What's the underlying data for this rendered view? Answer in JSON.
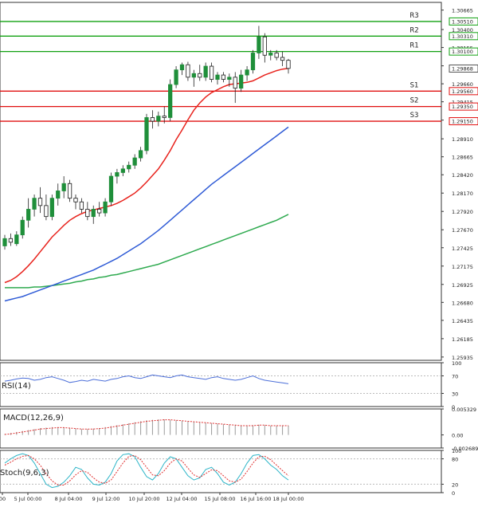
{
  "chart_data": [
    {
      "type": "candlestick",
      "panel": "price",
      "title": "",
      "y_ticks": [
        "1.30665",
        "1.30400",
        "1.30155",
        "1.29905",
        "1.29660",
        "1.29415",
        "1.29165",
        "1.28910",
        "1.28665",
        "1.28420",
        "1.28170",
        "1.27920",
        "1.27670",
        "1.27425",
        "1.27175",
        "1.26925",
        "1.26680",
        "1.26435",
        "1.26185",
        "1.25935"
      ],
      "ylim": [
        1.2589,
        1.3077
      ],
      "x_ticks": [
        "00",
        "5 Jul 00:00",
        "8 Jul 04:00",
        "9 Jul 12:00",
        "10 Jul 20:00",
        "12 Jul 04:00",
        "15 Jul 08:00",
        "16 Jul 16:00",
        "18 Jul 00:00"
      ],
      "levels": [
        {
          "name": "R3",
          "value": "1.30510",
          "color": "#11a011"
        },
        {
          "name": "R2",
          "value": "1.30310",
          "color": "#11a011"
        },
        {
          "name": "R1",
          "value": "1.30100",
          "color": "#11a011"
        },
        {
          "name": "S1",
          "value": "1.29560",
          "color": "#e01010"
        },
        {
          "name": "S2",
          "value": "1.29350",
          "color": "#e01010"
        },
        {
          "name": "S3",
          "value": "1.29150",
          "color": "#e01010"
        }
      ],
      "current_price": "1.29868",
      "candles": [
        {
          "o": 1.2745,
          "h": 1.276,
          "l": 1.274,
          "c": 1.2755
        },
        {
          "o": 1.2755,
          "h": 1.2762,
          "l": 1.2745,
          "c": 1.275
        },
        {
          "o": 1.2748,
          "h": 1.2765,
          "l": 1.2745,
          "c": 1.276
        },
        {
          "o": 1.276,
          "h": 1.2785,
          "l": 1.2755,
          "c": 1.278
        },
        {
          "o": 1.278,
          "h": 1.281,
          "l": 1.277,
          "c": 1.2795
        },
        {
          "o": 1.2795,
          "h": 1.2815,
          "l": 1.2785,
          "c": 1.281
        },
        {
          "o": 1.281,
          "h": 1.2825,
          "l": 1.279,
          "c": 1.28
        },
        {
          "o": 1.28,
          "h": 1.2815,
          "l": 1.278,
          "c": 1.2785
        },
        {
          "o": 1.2785,
          "h": 1.2815,
          "l": 1.278,
          "c": 1.281
        },
        {
          "o": 1.281,
          "h": 1.283,
          "l": 1.28,
          "c": 1.282
        },
        {
          "o": 1.282,
          "h": 1.284,
          "l": 1.281,
          "c": 1.283
        },
        {
          "o": 1.283,
          "h": 1.2835,
          "l": 1.2805,
          "c": 1.281
        },
        {
          "o": 1.281,
          "h": 1.2815,
          "l": 1.2795,
          "c": 1.2805
        },
        {
          "o": 1.2805,
          "h": 1.281,
          "l": 1.279,
          "c": 1.2795
        },
        {
          "o": 1.2795,
          "h": 1.2805,
          "l": 1.278,
          "c": 1.2785
        },
        {
          "o": 1.2785,
          "h": 1.28,
          "l": 1.2775,
          "c": 1.2795
        },
        {
          "o": 1.2795,
          "h": 1.2805,
          "l": 1.2785,
          "c": 1.279
        },
        {
          "o": 1.279,
          "h": 1.281,
          "l": 1.2785,
          "c": 1.2805
        },
        {
          "o": 1.2805,
          "h": 1.2845,
          "l": 1.28,
          "c": 1.284
        },
        {
          "o": 1.284,
          "h": 1.285,
          "l": 1.283,
          "c": 1.2845
        },
        {
          "o": 1.2845,
          "h": 1.2855,
          "l": 1.284,
          "c": 1.285
        },
        {
          "o": 1.285,
          "h": 1.286,
          "l": 1.2845,
          "c": 1.2855
        },
        {
          "o": 1.2855,
          "h": 1.287,
          "l": 1.285,
          "c": 1.2865
        },
        {
          "o": 1.2865,
          "h": 1.288,
          "l": 1.286,
          "c": 1.2875
        },
        {
          "o": 1.2875,
          "h": 1.2925,
          "l": 1.287,
          "c": 1.292
        },
        {
          "o": 1.292,
          "h": 1.293,
          "l": 1.2905,
          "c": 1.2915
        },
        {
          "o": 1.2915,
          "h": 1.2928,
          "l": 1.2908,
          "c": 1.2922
        },
        {
          "o": 1.2922,
          "h": 1.2935,
          "l": 1.2912,
          "c": 1.292
        },
        {
          "o": 1.292,
          "h": 1.2972,
          "l": 1.2915,
          "c": 1.2965
        },
        {
          "o": 1.2965,
          "h": 1.299,
          "l": 1.296,
          "c": 1.2985
        },
        {
          "o": 1.2985,
          "h": 1.2995,
          "l": 1.2978,
          "c": 1.2992
        },
        {
          "o": 1.2992,
          "h": 1.2996,
          "l": 1.297,
          "c": 1.2975
        },
        {
          "o": 1.2975,
          "h": 1.2985,
          "l": 1.2962,
          "c": 1.298
        },
        {
          "o": 1.298,
          "h": 1.2992,
          "l": 1.297,
          "c": 1.2975
        },
        {
          "o": 1.2975,
          "h": 1.2995,
          "l": 1.297,
          "c": 1.299
        },
        {
          "o": 1.299,
          "h": 1.2995,
          "l": 1.2968,
          "c": 1.2972
        },
        {
          "o": 1.2972,
          "h": 1.2982,
          "l": 1.2965,
          "c": 1.2978
        },
        {
          "o": 1.2978,
          "h": 1.2982,
          "l": 1.2968,
          "c": 1.2972
        },
        {
          "o": 1.2972,
          "h": 1.298,
          "l": 1.2962,
          "c": 1.2975
        },
        {
          "o": 1.2975,
          "h": 1.2982,
          "l": 1.294,
          "c": 1.296
        },
        {
          "o": 1.296,
          "h": 1.2985,
          "l": 1.2955,
          "c": 1.2978
        },
        {
          "o": 1.2978,
          "h": 1.299,
          "l": 1.297,
          "c": 1.2985
        },
        {
          "o": 1.2985,
          "h": 1.3012,
          "l": 1.298,
          "c": 1.3008
        },
        {
          "o": 1.3008,
          "h": 1.3045,
          "l": 1.3,
          "c": 1.303
        },
        {
          "o": 1.303,
          "h": 1.3035,
          "l": 1.2995,
          "c": 1.3005
        },
        {
          "o": 1.3005,
          "h": 1.3012,
          "l": 1.2998,
          "c": 1.3008
        },
        {
          "o": 1.3008,
          "h": 1.3012,
          "l": 1.2998,
          "c": 1.3002
        },
        {
          "o": 1.3002,
          "h": 1.301,
          "l": 1.299,
          "c": 1.2998
        },
        {
          "o": 1.2998,
          "h": 1.3,
          "l": 1.298,
          "c": 1.2987
        }
      ],
      "ma_fast": [
        1.2695,
        1.2698,
        1.2703,
        1.271,
        1.2718,
        1.2727,
        1.2737,
        1.2747,
        1.2757,
        1.2765,
        1.2773,
        1.278,
        1.2785,
        1.2789,
        1.2792,
        1.2794,
        1.2796,
        1.2798,
        1.28,
        1.2803,
        1.2807,
        1.2812,
        1.2817,
        1.2824,
        1.2832,
        1.2841,
        1.285,
        1.2862,
        1.2875,
        1.289,
        1.2903,
        1.2917,
        1.293,
        1.294,
        1.2948,
        1.2954,
        1.2958,
        1.2962,
        1.2965,
        1.2966,
        1.2967,
        1.2968,
        1.297,
        1.2974,
        1.2978,
        1.2981,
        1.2984,
        1.2986,
        1.2987
      ],
      "ma_mid": [
        1.267,
        1.2672,
        1.2674,
        1.2676,
        1.2679,
        1.2682,
        1.2685,
        1.2688,
        1.2691,
        1.2694,
        1.2697,
        1.27,
        1.2703,
        1.2706,
        1.2709,
        1.2712,
        1.2716,
        1.272,
        1.2724,
        1.2728,
        1.2733,
        1.2738,
        1.2743,
        1.2748,
        1.2754,
        1.276,
        1.2766,
        1.2773,
        1.278,
        1.2787,
        1.2794,
        1.2801,
        1.2808,
        1.2815,
        1.2822,
        1.2829,
        1.2835,
        1.2841,
        1.2847,
        1.2853,
        1.2859,
        1.2865,
        1.2871,
        1.2877,
        1.2883,
        1.2889,
        1.2895,
        1.2901,
        1.2907
      ],
      "ma_slow": [
        1.2688,
        1.2688,
        1.2688,
        1.2688,
        1.2688,
        1.2689,
        1.2689,
        1.269,
        1.2691,
        1.2692,
        1.2693,
        1.2694,
        1.2696,
        1.2697,
        1.2699,
        1.27,
        1.2702,
        1.2703,
        1.2705,
        1.2706,
        1.2708,
        1.271,
        1.2712,
        1.2714,
        1.2716,
        1.2718,
        1.272,
        1.2723,
        1.2726,
        1.2729,
        1.2732,
        1.2735,
        1.2738,
        1.2741,
        1.2744,
        1.2747,
        1.275,
        1.2753,
        1.2756,
        1.2759,
        1.2762,
        1.2765,
        1.2768,
        1.2771,
        1.2774,
        1.2777,
        1.278,
        1.2784,
        1.2788
      ]
    },
    {
      "type": "line",
      "panel": "rsi",
      "label": "RSI(14)",
      "y_ticks": [
        "100",
        "70",
        "30",
        "0"
      ],
      "ylim": [
        0,
        100
      ],
      "values": [
        58,
        60,
        63,
        65,
        64,
        60,
        62,
        66,
        68,
        64,
        60,
        55,
        57,
        60,
        58,
        62,
        60,
        58,
        62,
        64,
        68,
        70,
        66,
        64,
        68,
        72,
        70,
        68,
        66,
        70,
        72,
        68,
        66,
        64,
        62,
        66,
        68,
        64,
        62,
        60,
        62,
        66,
        70,
        64,
        60,
        58,
        56,
        54,
        52
      ]
    },
    {
      "type": "bar",
      "panel": "macd",
      "label": "MACD(12,26,9)",
      "y_ticks": [
        "0.005329",
        "0.00",
        "-0.002689"
      ],
      "ylim": [
        -0.002689,
        0.005329
      ],
      "histogram": [
        0.0002,
        0.0004,
        0.0006,
        0.0008,
        0.001,
        0.0012,
        0.0014,
        0.0015,
        0.0016,
        0.0016,
        0.0015,
        0.0014,
        0.0013,
        0.0012,
        0.0012,
        0.0013,
        0.0014,
        0.0016,
        0.0018,
        0.002,
        0.0022,
        0.0024,
        0.0026,
        0.0028,
        0.003,
        0.0031,
        0.0032,
        0.0032,
        0.0031,
        0.003,
        0.0029,
        0.0028,
        0.0027,
        0.0026,
        0.0025,
        0.0024,
        0.0023,
        0.0022,
        0.0021,
        0.002,
        0.0019,
        0.0019,
        0.002,
        0.0021,
        0.002,
        0.0019,
        0.0019,
        0.0019,
        0.0019
      ],
      "signal": [
        0.0001,
        0.0002,
        0.0004,
        0.0006,
        0.0008,
        0.001,
        0.0012,
        0.0013,
        0.0014,
        0.0015,
        0.0015,
        0.0014,
        0.0013,
        0.0012,
        0.0012,
        0.0012,
        0.0013,
        0.0014,
        0.0016,
        0.0018,
        0.002,
        0.0022,
        0.0024,
        0.0026,
        0.0028,
        0.0029,
        0.003,
        0.0031,
        0.0031,
        0.003,
        0.0029,
        0.0028,
        0.0027,
        0.0026,
        0.0025,
        0.0024,
        0.0023,
        0.0022,
        0.0021,
        0.002,
        0.0019,
        0.0019,
        0.0019,
        0.002,
        0.002,
        0.0019,
        0.0019,
        0.0019,
        0.0019
      ]
    },
    {
      "type": "line",
      "panel": "stoch",
      "label": "Stoch(9,6,3)",
      "y_ticks": [
        "100",
        "80",
        "20",
        "0"
      ],
      "ylim": [
        0,
        100
      ],
      "main": [
        70,
        80,
        88,
        92,
        88,
        70,
        45,
        20,
        12,
        15,
        25,
        40,
        60,
        55,
        35,
        20,
        18,
        25,
        45,
        75,
        90,
        92,
        85,
        60,
        38,
        30,
        45,
        70,
        85,
        80,
        60,
        40,
        30,
        35,
        55,
        60,
        45,
        25,
        18,
        25,
        45,
        70,
        88,
        90,
        80,
        65,
        55,
        40,
        30
      ],
      "signal": [
        65,
        72,
        80,
        86,
        88,
        80,
        65,
        45,
        28,
        18,
        18,
        28,
        42,
        52,
        48,
        35,
        25,
        22,
        30,
        50,
        70,
        86,
        88,
        78,
        60,
        42,
        40,
        52,
        70,
        80,
        75,
        58,
        42,
        36,
        45,
        54,
        52,
        40,
        28,
        25,
        32,
        50,
        70,
        85,
        86,
        78,
        65,
        52,
        40
      ]
    }
  ],
  "colors": {
    "up_candle": "#1f8f3a",
    "down_candle": "#1a1a1a",
    "resistance": "#11a011",
    "support": "#e01010",
    "ma_fast": "#e8231d",
    "ma_mid": "#2f5bd6",
    "ma_slow": "#2eaa4f",
    "rsi_line": "#4c6fd9",
    "macd_signal": "#e03030",
    "macd_hist": "#9a9a9a",
    "stoch_main": "#2db5c8",
    "stoch_signal": "#e03030"
  }
}
